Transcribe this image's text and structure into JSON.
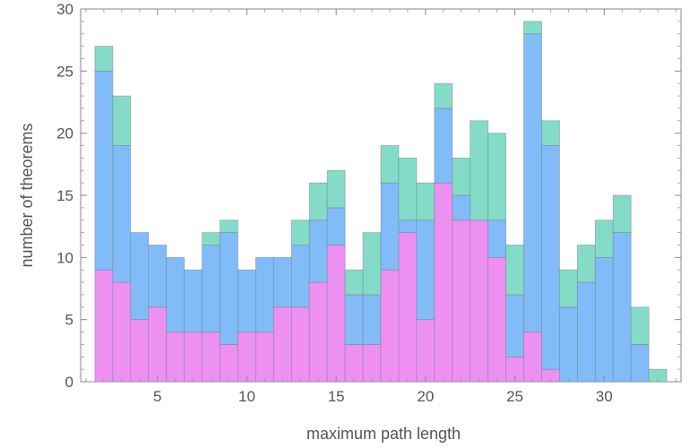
{
  "chart_data": {
    "type": "bar",
    "stacked": true,
    "title": "",
    "xlabel": "maximum path length",
    "ylabel": "number of theorems",
    "x": [
      2,
      3,
      4,
      5,
      6,
      7,
      8,
      9,
      10,
      11,
      12,
      13,
      14,
      15,
      16,
      17,
      18,
      19,
      20,
      21,
      22,
      23,
      24,
      25,
      26,
      27,
      28,
      29,
      30,
      31,
      32,
      33
    ],
    "xlim": [
      0.7,
      34.3
    ],
    "ylim": [
      0,
      30
    ],
    "xticks": [
      5,
      10,
      15,
      20,
      25,
      30
    ],
    "yticks": [
      0,
      5,
      10,
      15,
      20,
      25,
      30
    ],
    "series": [
      {
        "name": "pink",
        "color": "#ee90f2",
        "values": [
          9,
          8,
          5,
          6,
          4,
          4,
          4,
          3,
          4,
          4,
          6,
          6,
          8,
          11,
          3,
          3,
          9,
          12,
          5,
          16,
          13,
          13,
          10,
          2,
          4,
          1,
          0,
          0,
          0,
          0,
          0,
          0
        ]
      },
      {
        "name": "blue",
        "color": "#82bcf8",
        "values": [
          16,
          11,
          7,
          5,
          6,
          5,
          7,
          9,
          5,
          6,
          4,
          5,
          5,
          3,
          4,
          4,
          7,
          1,
          8,
          6,
          2,
          0,
          3,
          5,
          24,
          18,
          6,
          8,
          10,
          12,
          3,
          0
        ]
      },
      {
        "name": "teal",
        "color": "#84dcc8",
        "values": [
          2,
          4,
          0,
          0,
          0,
          0,
          1,
          1,
          0,
          0,
          0,
          2,
          3,
          3,
          2,
          5,
          3,
          5,
          3,
          2,
          3,
          8,
          7,
          4,
          1,
          2,
          3,
          3,
          3,
          3,
          3,
          1
        ]
      }
    ],
    "grid": false,
    "legend": "none"
  }
}
